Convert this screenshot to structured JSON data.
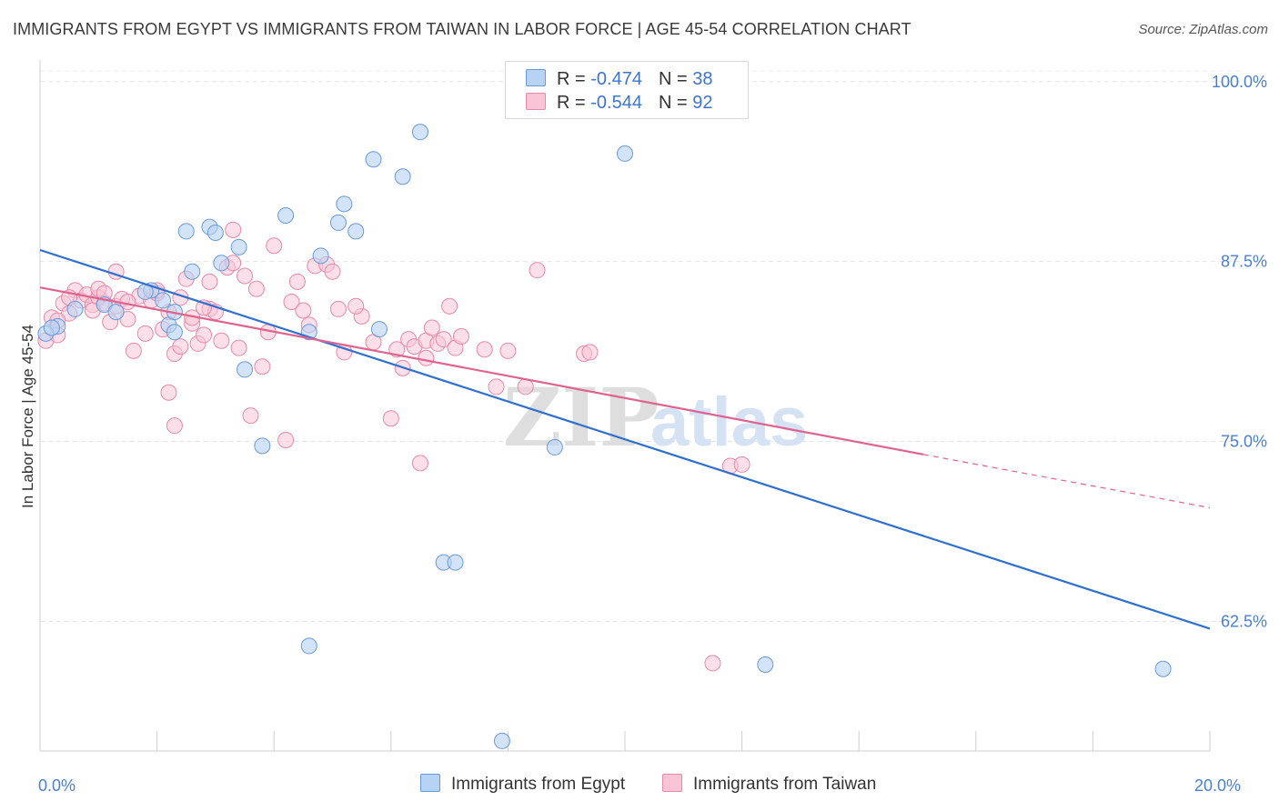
{
  "header": {
    "title": "IMMIGRANTS FROM EGYPT VS IMMIGRANTS FROM TAIWAN IN LABOR FORCE | AGE 45-54 CORRELATION CHART",
    "source": "Source: ZipAtlas.com"
  },
  "legend": {
    "rows": [
      {
        "r_label": "R = ",
        "r_value": "-0.474",
        "n_label": "N = ",
        "n_value": "38"
      },
      {
        "r_label": "R = ",
        "r_value": "-0.544",
        "n_label": "N = ",
        "n_value": "92"
      }
    ]
  },
  "bottom_legend": [
    "Immigrants from Egypt",
    "Immigrants from Taiwan"
  ],
  "watermark": {
    "zip": "ZIP",
    "atlas": "atlas"
  },
  "colors": {
    "egypt_fill": "#b8d2f4",
    "egypt_stroke": "#6a9ad9",
    "egypt_line": "#2e6fd0",
    "taiwan_fill": "#f9c4d6",
    "taiwan_stroke": "#e58aaa",
    "taiwan_line": "#e0628e",
    "axis_label": "#4a7fd0"
  },
  "chart_data": {
    "type": "scatter",
    "xlabel": "",
    "ylabel": "In Labor Force | Age 45-54",
    "xlim": [
      0,
      20
    ],
    "ylim": [
      53.5,
      101.5
    ],
    "x_tick_labels": [
      {
        "value": 0,
        "label": "0.0%"
      },
      {
        "value": 20,
        "label": "20.0%"
      }
    ],
    "y_tick_labels": [
      {
        "value": 100,
        "label": "100.0%"
      },
      {
        "value": 87.5,
        "label": "87.5%"
      },
      {
        "value": 75,
        "label": "75.0%"
      },
      {
        "value": 62.5,
        "label": "62.5%"
      }
    ],
    "grid": "horizontal dashed",
    "series": [
      {
        "name": "Immigrants from Egypt",
        "r": -0.474,
        "n": 38,
        "trend": {
          "x0": 0,
          "y0": 88.3,
          "x1": 20,
          "y1": 62.0
        },
        "points": [
          [
            0.6,
            84.2
          ],
          [
            0.3,
            83.0
          ],
          [
            0.1,
            82.5
          ],
          [
            1.1,
            84.5
          ],
          [
            1.3,
            84.0
          ],
          [
            1.9,
            85.5
          ],
          [
            2.1,
            84.8
          ],
          [
            2.2,
            83.1
          ],
          [
            2.3,
            84.0
          ],
          [
            2.3,
            82.6
          ],
          [
            2.5,
            89.6
          ],
          [
            2.6,
            86.8
          ],
          [
            2.9,
            89.9
          ],
          [
            3.0,
            89.5
          ],
          [
            3.1,
            87.4
          ],
          [
            3.4,
            88.5
          ],
          [
            3.5,
            80.0
          ],
          [
            3.8,
            74.7
          ],
          [
            4.2,
            90.7
          ],
          [
            4.6,
            60.8
          ],
          [
            4.6,
            82.6
          ],
          [
            4.8,
            87.9
          ],
          [
            5.1,
            90.2
          ],
          [
            5.2,
            91.5
          ],
          [
            5.4,
            89.6
          ],
          [
            5.8,
            82.8
          ],
          [
            5.7,
            94.6
          ],
          [
            6.2,
            93.4
          ],
          [
            6.5,
            96.5
          ],
          [
            6.9,
            66.6
          ],
          [
            7.1,
            66.6
          ],
          [
            7.9,
            54.2
          ],
          [
            8.8,
            74.6
          ],
          [
            10.0,
            95.0
          ],
          [
            12.4,
            59.5
          ],
          [
            19.2,
            59.2
          ],
          [
            1.8,
            85.4
          ],
          [
            0.2,
            82.9
          ]
        ]
      },
      {
        "name": "Immigrants from Taiwan",
        "r": -0.544,
        "n": 92,
        "trend": {
          "x0": 0,
          "y0": 85.7,
          "x1": 15.1,
          "y1": 74.1
        },
        "trend_dashed": {
          "x0": 15.1,
          "y0": 74.1,
          "x1": 20,
          "y1": 70.4
        },
        "points": [
          [
            0.1,
            82.0
          ],
          [
            0.2,
            83.6
          ],
          [
            0.3,
            82.4
          ],
          [
            0.4,
            84.6
          ],
          [
            0.5,
            83.9
          ],
          [
            0.6,
            85.5
          ],
          [
            0.7,
            84.8
          ],
          [
            0.8,
            85.2
          ],
          [
            0.9,
            84.5
          ],
          [
            1.0,
            85.0
          ],
          [
            1.0,
            85.6
          ],
          [
            1.1,
            84.6
          ],
          [
            1.2,
            83.3
          ],
          [
            1.3,
            84.4
          ],
          [
            1.3,
            86.8
          ],
          [
            1.4,
            84.9
          ],
          [
            1.5,
            83.5
          ],
          [
            1.6,
            81.3
          ],
          [
            1.7,
            85.1
          ],
          [
            1.8,
            82.5
          ],
          [
            1.9,
            84.8
          ],
          [
            2.0,
            85.3
          ],
          [
            2.0,
            85.5
          ],
          [
            2.1,
            82.8
          ],
          [
            2.2,
            84.0
          ],
          [
            2.2,
            78.4
          ],
          [
            2.3,
            76.1
          ],
          [
            2.3,
            81.1
          ],
          [
            2.4,
            81.6
          ],
          [
            2.5,
            86.3
          ],
          [
            2.6,
            83.2
          ],
          [
            2.6,
            83.6
          ],
          [
            2.7,
            81.8
          ],
          [
            2.8,
            82.4
          ],
          [
            2.9,
            84.2
          ],
          [
            2.9,
            86.1
          ],
          [
            3.0,
            84.0
          ],
          [
            3.1,
            82.0
          ],
          [
            3.2,
            87.1
          ],
          [
            3.3,
            87.4
          ],
          [
            3.3,
            89.7
          ],
          [
            3.4,
            81.5
          ],
          [
            3.5,
            86.5
          ],
          [
            3.6,
            76.8
          ],
          [
            3.7,
            85.6
          ],
          [
            3.8,
            80.2
          ],
          [
            4.0,
            88.6
          ],
          [
            4.2,
            75.1
          ],
          [
            4.3,
            84.7
          ],
          [
            4.5,
            84.1
          ],
          [
            4.6,
            83.1
          ],
          [
            4.7,
            87.2
          ],
          [
            4.9,
            87.3
          ],
          [
            5.0,
            86.8
          ],
          [
            5.1,
            84.2
          ],
          [
            5.2,
            81.2
          ],
          [
            5.5,
            83.7
          ],
          [
            5.7,
            81.9
          ],
          [
            6.0,
            76.6
          ],
          [
            6.1,
            81.4
          ],
          [
            6.2,
            80.1
          ],
          [
            6.3,
            82.1
          ],
          [
            6.4,
            81.6
          ],
          [
            6.5,
            73.5
          ],
          [
            6.6,
            82.0
          ],
          [
            6.7,
            82.9
          ],
          [
            6.8,
            81.8
          ],
          [
            6.9,
            82.1
          ],
          [
            7.0,
            84.4
          ],
          [
            7.1,
            81.5
          ],
          [
            7.2,
            82.3
          ],
          [
            7.6,
            81.4
          ],
          [
            7.8,
            78.8
          ],
          [
            8.0,
            81.3
          ],
          [
            8.3,
            78.8
          ],
          [
            8.5,
            86.9
          ],
          [
            9.3,
            81.1
          ],
          [
            9.4,
            81.2
          ],
          [
            11.5,
            59.6
          ],
          [
            11.8,
            73.3
          ],
          [
            12.0,
            73.4
          ],
          [
            0.5,
            85.0
          ],
          [
            0.9,
            84.1
          ],
          [
            1.5,
            84.7
          ],
          [
            2.8,
            84.3
          ],
          [
            3.9,
            82.6
          ],
          [
            5.4,
            84.4
          ],
          [
            6.6,
            80.8
          ],
          [
            0.3,
            83.4
          ],
          [
            1.1,
            85.3
          ],
          [
            2.4,
            85.0
          ],
          [
            4.4,
            86.1
          ]
        ]
      }
    ]
  }
}
